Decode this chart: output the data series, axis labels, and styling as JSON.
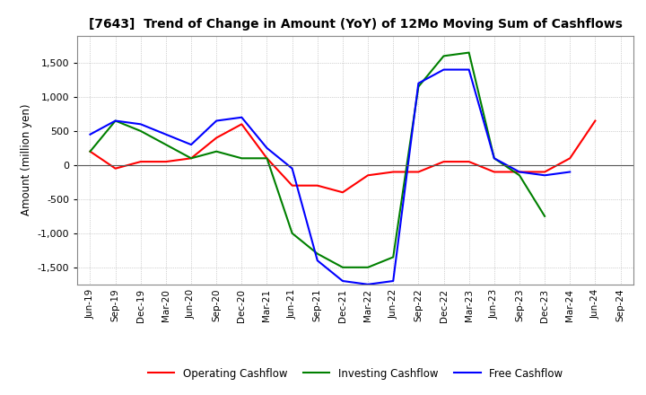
{
  "title": "[7643]  Trend of Change in Amount (YoY) of 12Mo Moving Sum of Cashflows",
  "ylabel": "Amount (million yen)",
  "ylim": [
    -1750,
    1900
  ],
  "yticks": [
    -1500,
    -1000,
    -500,
    0,
    500,
    1000,
    1500
  ],
  "background_color": "#ffffff",
  "grid_color": "#aaaaaa",
  "labels": [
    "Jun-19",
    "Sep-19",
    "Dec-19",
    "Mar-20",
    "Jun-20",
    "Sep-20",
    "Dec-20",
    "Mar-21",
    "Jun-21",
    "Sep-21",
    "Dec-21",
    "Mar-22",
    "Jun-22",
    "Sep-22",
    "Dec-22",
    "Mar-23",
    "Jun-23",
    "Sep-23",
    "Dec-23",
    "Mar-24",
    "Jun-24",
    "Sep-24"
  ],
  "operating": [
    200,
    -50,
    50,
    50,
    100,
    400,
    600,
    100,
    -300,
    -300,
    -400,
    -150,
    -100,
    -100,
    50,
    50,
    -100,
    -100,
    -100,
    100,
    650,
    null
  ],
  "investing": [
    200,
    650,
    500,
    300,
    100,
    200,
    100,
    100,
    -1000,
    -1300,
    -1500,
    -1500,
    -1350,
    1150,
    1600,
    1650,
    100,
    -150,
    -750,
    null,
    null,
    null
  ],
  "free": [
    450,
    650,
    600,
    450,
    300,
    650,
    700,
    250,
    -50,
    -1400,
    -1700,
    -1750,
    -1700,
    1200,
    1400,
    1400,
    100,
    -100,
    -150,
    -100,
    null,
    null
  ],
  "op_color": "#ff0000",
  "inv_color": "#008000",
  "free_color": "#0000ff",
  "legend_labels": [
    "Operating Cashflow",
    "Investing Cashflow",
    "Free Cashflow"
  ]
}
